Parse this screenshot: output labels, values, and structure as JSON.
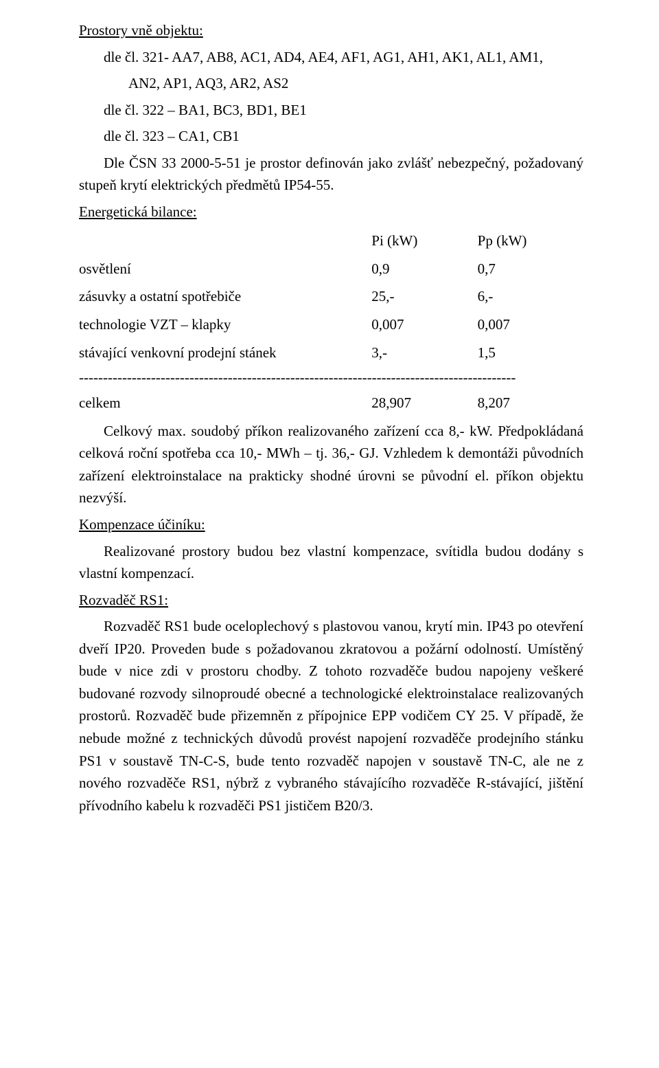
{
  "sections": {
    "outer_spaces": {
      "heading": "Prostory vně objektu:",
      "line1": "dle čl. 321- AA7, AB8, AC1, AD4, AE4, AF1, AG1, AH1, AK1, AL1, AM1,",
      "line1b": "AN2, AP1, AQ3, AR2, AS2",
      "line2": "dle čl. 322 – BA1, BC3, BD1, BE1",
      "line3": "dle čl. 323 – CA1, CB1"
    },
    "note": "Dle ČSN 33 2000-5-51 je prostor definován jako zvlášť nebezpečný, požadovaný stupeň krytí elektrických předmětů IP54-55.",
    "energy": {
      "heading": "Energetická bilance:",
      "col_a": "Pi (kW)",
      "col_b": "Pp (kW)",
      "rows": [
        {
          "label": "osvětlení",
          "a": "0,9",
          "b": "0,7"
        },
        {
          "label": "zásuvky a ostatní spotřebiče",
          "a": "25,-",
          "b": "6,-"
        },
        {
          "label": "technologie VZT – klapky",
          "a": "0,007",
          "b": "0,007"
        },
        {
          "label": "stávající venkovní prodejní stánek",
          "a": "3,-",
          "b": "1,5"
        }
      ],
      "total": {
        "label": "celkem",
        "a": "28,907",
        "b": "8,207"
      },
      "dashes": "-------------------------------------------------------------------------------------------"
    },
    "energy_para": "Celkový max. soudobý příkon realizovaného zařízení cca 8,- kW. Předpokládaná celková roční spotřeba cca 10,- MWh – tj. 36,- GJ. Vzhledem k demontáži původních zařízení elektroinstalace na prakticky shodné úrovni se původní el. příkon objektu nezvýší.",
    "komp": {
      "heading": "Kompenzace účiníku:",
      "text": "Realizované prostory budou bez vlastní kompenzace, svítidla budou dodány s vlastní kompenzací."
    },
    "rs1": {
      "heading": "Rozvaděč RS1:",
      "text": "Rozvaděč RS1 bude oceloplechový s plastovou vanou, krytí min. IP43 po otevření dveří IP20. Proveden bude s požadovanou zkratovou a požární odolností. Umístěný bude v nice zdi v prostoru chodby. Z tohoto rozvaděče budou napojeny veškeré budované rozvody silnoproudé obecné a technologické elektroinstalace realizovaných prostorů. Rozvaděč bude přizemněn z přípojnice EPP vodičem CY 25. V případě, že nebude možné z technických důvodů provést napojení rozvaděče prodejního stánku PS1 v soustavě TN-C-S, bude tento rozvaděč napojen v soustavě TN-C, ale ne z nového rozvaděče RS1, nýbrž z vybraného stávajícího rozvaděče R-stávající, jištění přívodního kabelu k rozvaděči PS1 jističem B20/3."
    }
  }
}
